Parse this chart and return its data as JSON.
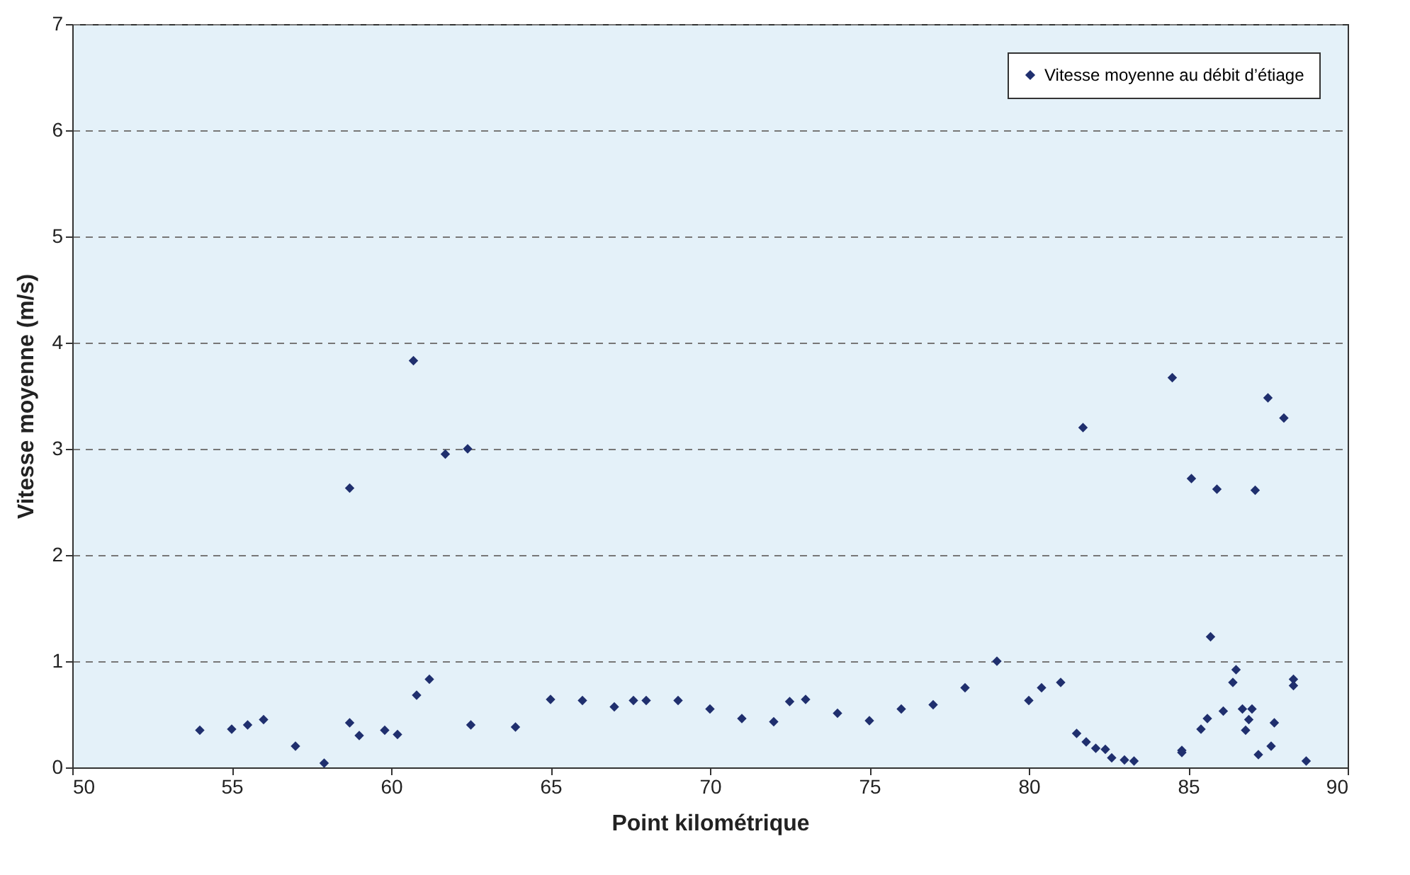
{
  "chart_data": {
    "type": "scatter",
    "xlabel": "Point kilométrique",
    "ylabel": "Vitesse moyenne (m/s)",
    "xlim": [
      50,
      90
    ],
    "xticks": [
      50,
      55,
      60,
      65,
      70,
      75,
      80,
      85,
      90
    ],
    "ylim": [
      0,
      7
    ],
    "yticks": [
      0,
      1,
      2,
      3,
      4,
      5,
      6,
      7
    ],
    "grid": "y",
    "legend": "top right",
    "marker": "diamond",
    "series": [
      {
        "name": "Vitesse moyenne au débit d’étiage",
        "color": "#1f2f6e",
        "x": [
          54,
          55,
          55.5,
          56,
          57,
          57.9,
          58.7,
          58.7,
          59,
          59.8,
          60.2,
          60.7,
          60.8,
          61.2,
          61.7,
          62.4,
          62.5,
          63.9,
          65,
          66,
          67,
          67.6,
          68,
          69,
          70,
          71,
          72,
          72.5,
          73,
          74,
          75,
          76,
          77,
          78,
          79,
          80,
          80.4,
          81,
          81.5,
          81.8,
          82.1,
          82.4,
          82.6,
          83,
          83.3,
          81.7,
          84.5,
          84.8,
          84.8,
          85.1,
          85.4,
          85.6,
          85.7,
          85.9,
          86.1,
          86.4,
          86.5,
          86.7,
          86.8,
          86.9,
          87.0,
          87.1,
          87.2,
          87.5,
          87.6,
          87.7,
          88.0,
          88.3,
          88.3,
          88.7
        ],
        "values": [
          0.35,
          0.36,
          0.4,
          0.45,
          0.2,
          0.04,
          2.63,
          0.42,
          0.3,
          0.35,
          0.31,
          3.83,
          0.68,
          0.83,
          2.95,
          3.0,
          0.4,
          0.38,
          0.64,
          0.63,
          0.57,
          0.63,
          0.63,
          0.63,
          0.55,
          0.46,
          0.43,
          0.62,
          0.64,
          0.51,
          0.44,
          0.55,
          0.59,
          0.75,
          1.0,
          0.63,
          0.75,
          0.8,
          0.32,
          0.24,
          0.18,
          0.17,
          0.09,
          0.07,
          0.06,
          3.2,
          3.67,
          0.16,
          0.14,
          2.72,
          0.36,
          0.46,
          1.23,
          2.62,
          0.53,
          0.8,
          0.92,
          0.55,
          0.35,
          0.45,
          0.55,
          2.61,
          0.12,
          3.48,
          0.2,
          0.42,
          3.29,
          0.83,
          0.77,
          0.06
        ]
      }
    ]
  }
}
